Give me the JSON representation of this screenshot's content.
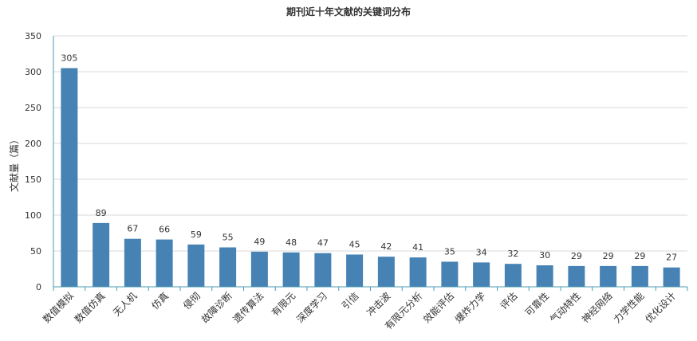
{
  "chart_data": {
    "type": "bar",
    "title": "期刊近十年文献的关键词分布",
    "ylabel": "文献量（篇）",
    "xlabel": "",
    "ylim": [
      0,
      350
    ],
    "yticks": [
      0,
      50,
      100,
      150,
      200,
      250,
      300,
      350
    ],
    "grid": true,
    "legend": "none",
    "colors": {
      "bar": "#4682b4",
      "axis": "#4b9bb3",
      "grid": "#d9d9d9",
      "text": "#333333"
    },
    "categories": [
      "数值模拟",
      "数值仿真",
      "无人机",
      "仿真",
      "侵彻",
      "故障诊断",
      "遗传算法",
      "有限元",
      "深度学习",
      "引信",
      "冲击波",
      "有限元分析",
      "效能评估",
      "爆炸力学",
      "评估",
      "可靠性",
      "气动特性",
      "神经网络",
      "力学性能",
      "优化设计"
    ],
    "values": [
      305,
      89,
      67,
      66,
      59,
      55,
      49,
      48,
      47,
      45,
      42,
      41,
      35,
      34,
      32,
      30,
      29,
      29,
      29,
      27
    ]
  }
}
